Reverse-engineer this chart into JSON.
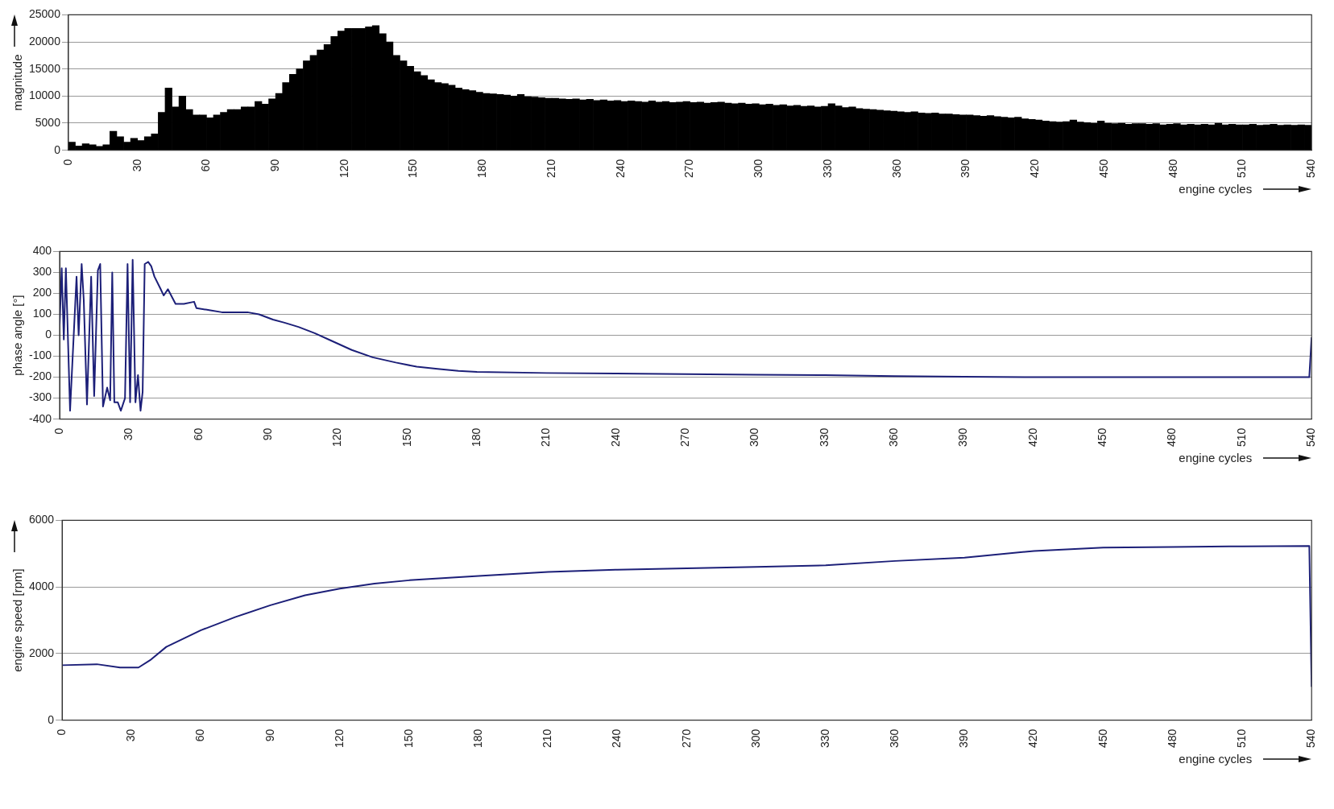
{
  "chart_data": [
    {
      "type": "bar",
      "ylabel": "magnitude",
      "xlabel": "engine cycles",
      "color": "#000000",
      "grid": "y",
      "xlim": [
        0,
        540
      ],
      "xticks": [
        0,
        30,
        60,
        90,
        120,
        150,
        180,
        210,
        240,
        270,
        300,
        330,
        360,
        390,
        420,
        450,
        480,
        510,
        540
      ],
      "ylim": [
        0,
        25000
      ],
      "yticks": [
        0,
        5000,
        10000,
        15000,
        20000,
        25000
      ],
      "x": [
        1.5,
        4.5,
        7.5,
        10.5,
        13.5,
        16.5,
        19.5,
        22.5,
        25.5,
        28.5,
        31.5,
        34.5,
        37.5,
        40.5,
        43.5,
        46.5,
        49.5,
        52.5,
        55.5,
        58.5,
        61.5,
        64.5,
        67.5,
        70.5,
        73.5,
        76.5,
        79.5,
        82.5,
        85.5,
        88.5,
        91.5,
        94.5,
        97.5,
        100.5,
        103.5,
        106.5,
        109.5,
        112.5,
        115.5,
        118.5,
        121.5,
        124.5,
        127.5,
        130.5,
        133.5,
        136.5,
        139.5,
        142.5,
        145.5,
        148.5,
        151.5,
        154.5,
        157.5,
        160.5,
        163.5,
        166.5,
        169.5,
        172.5,
        175.5,
        178.5,
        181.5,
        184.5,
        187.5,
        190.5,
        193.5,
        196.5,
        199.5,
        202.5,
        205.5,
        208.5,
        211.5,
        214.5,
        217.5,
        220.5,
        223.5,
        226.5,
        229.5,
        232.5,
        235.5,
        238.5,
        241.5,
        244.5,
        247.5,
        250.5,
        253.5,
        256.5,
        259.5,
        262.5,
        265.5,
        268.5,
        271.5,
        274.5,
        277.5,
        280.5,
        283.5,
        286.5,
        289.5,
        292.5,
        295.5,
        298.5,
        301.5,
        304.5,
        307.5,
        310.5,
        313.5,
        316.5,
        319.5,
        322.5,
        325.5,
        328.5,
        331.5,
        334.5,
        337.5,
        340.5,
        343.5,
        346.5,
        349.5,
        352.5,
        355.5,
        358.5,
        361.5,
        364.5,
        367.5,
        370.5,
        373.5,
        376.5,
        379.5,
        382.5,
        385.5,
        388.5,
        391.5,
        394.5,
        397.5,
        400.5,
        403.5,
        406.5,
        409.5,
        412.5,
        415.5,
        418.5,
        421.5,
        424.5,
        427.5,
        430.5,
        433.5,
        436.5,
        439.5,
        442.5,
        445.5,
        448.5,
        451.5,
        454.5,
        457.5,
        460.5,
        463.5,
        466.5,
        469.5,
        472.5,
        475.5,
        478.5,
        481.5,
        484.5,
        487.5,
        490.5,
        493.5,
        496.5,
        499.5,
        502.5,
        505.5,
        508.5,
        511.5,
        514.5,
        517.5,
        520.5,
        523.5,
        526.5,
        529.5,
        532.5,
        535.5,
        538.5
      ],
      "values": [
        1500,
        800,
        1200,
        1000,
        700,
        1000,
        3500,
        2500,
        1500,
        2200,
        1800,
        2500,
        3000,
        7000,
        11500,
        8000,
        10000,
        7500,
        6500,
        6500,
        6000,
        6500,
        7000,
        7500,
        7500,
        8000,
        8000,
        9000,
        8500,
        9500,
        10500,
        12500,
        14000,
        15000,
        16500,
        17500,
        18500,
        19500,
        21000,
        22000,
        22500,
        22500,
        22500,
        22800,
        23000,
        21500,
        20000,
        17500,
        16500,
        15500,
        14500,
        13800,
        13000,
        12500,
        12300,
        12000,
        11500,
        11200,
        11000,
        10700,
        10500,
        10400,
        10300,
        10200,
        10000,
        10300,
        9900,
        9800,
        9700,
        9600,
        9600,
        9500,
        9400,
        9500,
        9300,
        9400,
        9200,
        9300,
        9100,
        9200,
        9000,
        9100,
        9000,
        8900,
        9100,
        8900,
        9000,
        8800,
        8900,
        9000,
        8800,
        8900,
        8700,
        8800,
        8900,
        8700,
        8600,
        8700,
        8500,
        8600,
        8400,
        8500,
        8300,
        8400,
        8200,
        8300,
        8100,
        8200,
        8000,
        8100,
        8600,
        8200,
        7900,
        8000,
        7700,
        7600,
        7500,
        7400,
        7300,
        7200,
        7100,
        7000,
        7100,
        6900,
        6800,
        6900,
        6700,
        6700,
        6600,
        6500,
        6500,
        6400,
        6300,
        6400,
        6200,
        6100,
        6000,
        6100,
        5800,
        5700,
        5600,
        5400,
        5300,
        5200,
        5300,
        5600,
        5200,
        5100,
        5000,
        5400,
        5000,
        4900,
        5000,
        4800,
        4900,
        4900,
        4800,
        4900,
        4700,
        4800,
        4900,
        4700,
        4800,
        4700,
        4800,
        4700,
        5000,
        4700,
        4800,
        4700,
        4700,
        4800,
        4600,
        4700,
        4800,
        4600,
        4700,
        4600,
        4700,
        4600
      ]
    },
    {
      "type": "line",
      "ylabel": "phase angle [°]",
      "xlabel": "engine cycles",
      "color": "#1c1f78",
      "grid": "y",
      "xlim": [
        0,
        540
      ],
      "xticks": [
        0,
        30,
        60,
        90,
        120,
        150,
        180,
        210,
        240,
        270,
        300,
        330,
        360,
        390,
        420,
        450,
        480,
        510,
        540
      ],
      "ylim": [
        -400,
        400
      ],
      "yticks": [
        -400,
        -300,
        -200,
        -100,
        0,
        100,
        200,
        300,
        400
      ],
      "x": [
        0,
        0.9,
        1.8,
        2.7,
        4.5,
        7.3,
        8.2,
        9.5,
        10.4,
        11.8,
        13.6,
        14.9,
        16.5,
        17.5,
        18.7,
        20.5,
        21.8,
        22.7,
        23.6,
        25.1,
        26.4,
        28.2,
        29.3,
        30.4,
        31.5,
        32.7,
        33.8,
        34.9,
        35.8,
        36.7,
        38.2,
        39.5,
        40.9,
        43.6,
        44.9,
        46.7,
        50,
        53.6,
        58,
        59,
        64.5,
        70,
        81,
        86,
        92,
        97,
        103,
        110,
        117,
        126,
        135,
        145,
        154,
        163,
        172,
        180,
        210,
        240,
        270,
        300,
        330,
        360,
        390,
        420,
        450,
        480,
        510,
        539,
        540
      ],
      "values": [
        50,
        320,
        -20,
        320,
        -360,
        280,
        0,
        340,
        170,
        -330,
        280,
        -290,
        310,
        340,
        -340,
        -250,
        -310,
        300,
        -320,
        -320,
        -360,
        -300,
        340,
        -320,
        360,
        -320,
        -190,
        -360,
        -270,
        340,
        350,
        330,
        280,
        220,
        190,
        220,
        150,
        150,
        160,
        130,
        120,
        110,
        110,
        100,
        75,
        60,
        40,
        10,
        -25,
        -70,
        -105,
        -130,
        -150,
        -160,
        -170,
        -175,
        -180,
        -182,
        -185,
        -188,
        -190,
        -195,
        -198,
        -200,
        -200,
        -200,
        -200,
        -200,
        -10
      ]
    },
    {
      "type": "line",
      "ylabel": "engine speed [rpm]",
      "xlabel": "engine cycles",
      "color": "#1c1f78",
      "grid": "y",
      "xlim": [
        0,
        540
      ],
      "xticks": [
        0,
        30,
        60,
        90,
        120,
        150,
        180,
        210,
        240,
        270,
        300,
        330,
        360,
        390,
        420,
        450,
        480,
        510,
        540
      ],
      "ylim": [
        0,
        6000
      ],
      "yticks": [
        0,
        2000,
        4000,
        6000
      ],
      "x": [
        0,
        15,
        25,
        33,
        38,
        45,
        60,
        75,
        90,
        105,
        120,
        135,
        150,
        180,
        210,
        240,
        270,
        300,
        330,
        360,
        390,
        420,
        450,
        480,
        510,
        539,
        540
      ],
      "values": [
        1650,
        1680,
        1580,
        1580,
        1800,
        2200,
        2700,
        3100,
        3450,
        3750,
        3950,
        4100,
        4200,
        4330,
        4450,
        4520,
        4560,
        4600,
        4650,
        4780,
        4880,
        5080,
        5180,
        5200,
        5220,
        5230,
        1000
      ]
    }
  ]
}
